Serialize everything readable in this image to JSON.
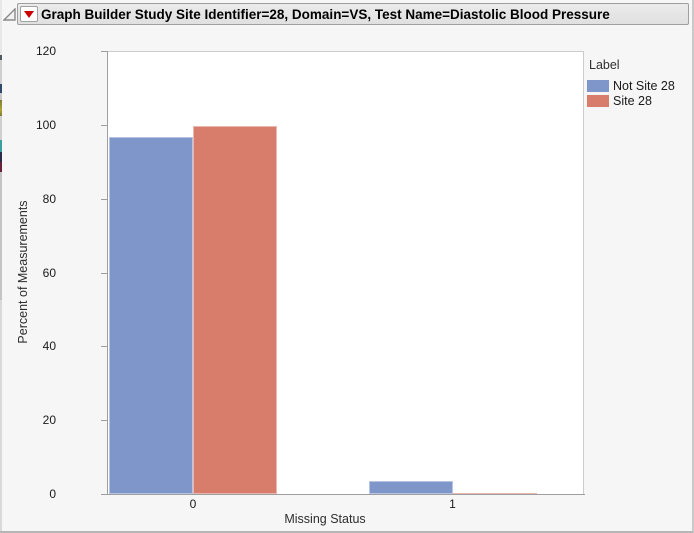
{
  "window": {
    "title": "Graph Builder Study Site Identifier=28, Domain=VS, Test Name=Diastolic Blood Pressure"
  },
  "chart_data": {
    "type": "bar",
    "title": "Graph Builder Study Site Identifier=28, Domain=VS, Test Name=Diastolic Blood Pressure",
    "categories": [
      "0",
      "1"
    ],
    "series": [
      {
        "name": "Not Site 28",
        "color": "#7e96ca",
        "values": [
          96.6,
          3.4
        ]
      },
      {
        "name": "Site 28",
        "color": "#d87c6c",
        "values": [
          99.7,
          0.4
        ]
      }
    ],
    "xlabel": "Missing Status",
    "ylabel": "Percent of Measurements",
    "ylim": [
      0,
      120
    ],
    "ytick_step": 20,
    "grid": false,
    "legend": {
      "title": "Label",
      "position": "right"
    }
  }
}
